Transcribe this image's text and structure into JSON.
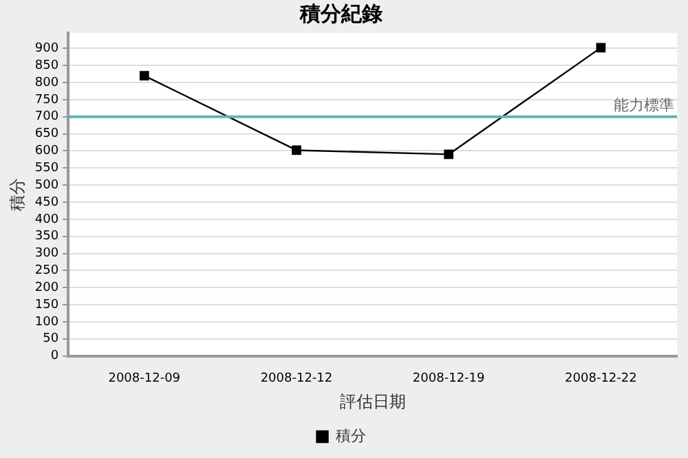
{
  "chart_data": {
    "type": "line",
    "title": "積分紀錄",
    "xlabel": "評估日期",
    "ylabel": "積分",
    "categories": [
      "2008-12-09",
      "2008-12-12",
      "2008-12-19",
      "2008-12-22"
    ],
    "series": [
      {
        "name": "積分",
        "color": "#000000",
        "values": [
          820,
          602,
          590,
          902
        ]
      }
    ],
    "ylim": [
      0,
      945
    ],
    "yticks": [
      0,
      50,
      100,
      150,
      200,
      250,
      300,
      350,
      400,
      450,
      500,
      550,
      600,
      650,
      700,
      750,
      800,
      850,
      900
    ],
    "grid": "y",
    "legend": "bottom",
    "marker": "square",
    "line_style": "solid",
    "ref_lines": [
      {
        "axis": "y",
        "value": 700,
        "label": "能力標準",
        "color": "#5fb3b3"
      }
    ]
  }
}
